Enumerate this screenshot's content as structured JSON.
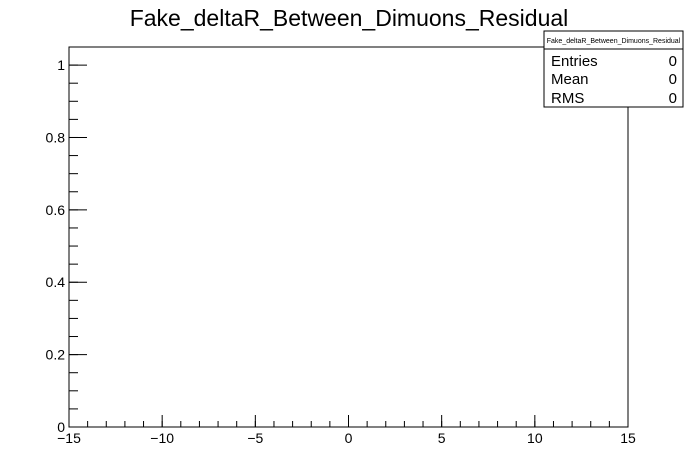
{
  "chart_data": {
    "type": "bar",
    "title": "Fake_deltaR_Between_Dimuons_Residual",
    "xlabel": "",
    "ylabel": "",
    "xlim": [
      -15,
      15
    ],
    "ylim": [
      0,
      1.05
    ],
    "x_ticks": [
      -15,
      -10,
      -5,
      0,
      5,
      10,
      15
    ],
    "x_tick_labels": [
      "−15",
      "−10",
      "−5",
      "0",
      "5",
      "10",
      "15"
    ],
    "y_ticks": [
      0,
      0.2,
      0.4,
      0.6,
      0.8,
      1
    ],
    "y_tick_labels": [
      "0",
      "0.2",
      "0.4",
      "0.6",
      "0.8",
      "1"
    ],
    "series": [],
    "grid": false
  },
  "stats_box": {
    "name": "Fake_deltaR_Between_Dimuons_Residual",
    "rows": [
      {
        "label": "Entries",
        "value": "0"
      },
      {
        "label": "Mean",
        "value": "0"
      },
      {
        "label": "RMS",
        "value": "0"
      }
    ]
  }
}
